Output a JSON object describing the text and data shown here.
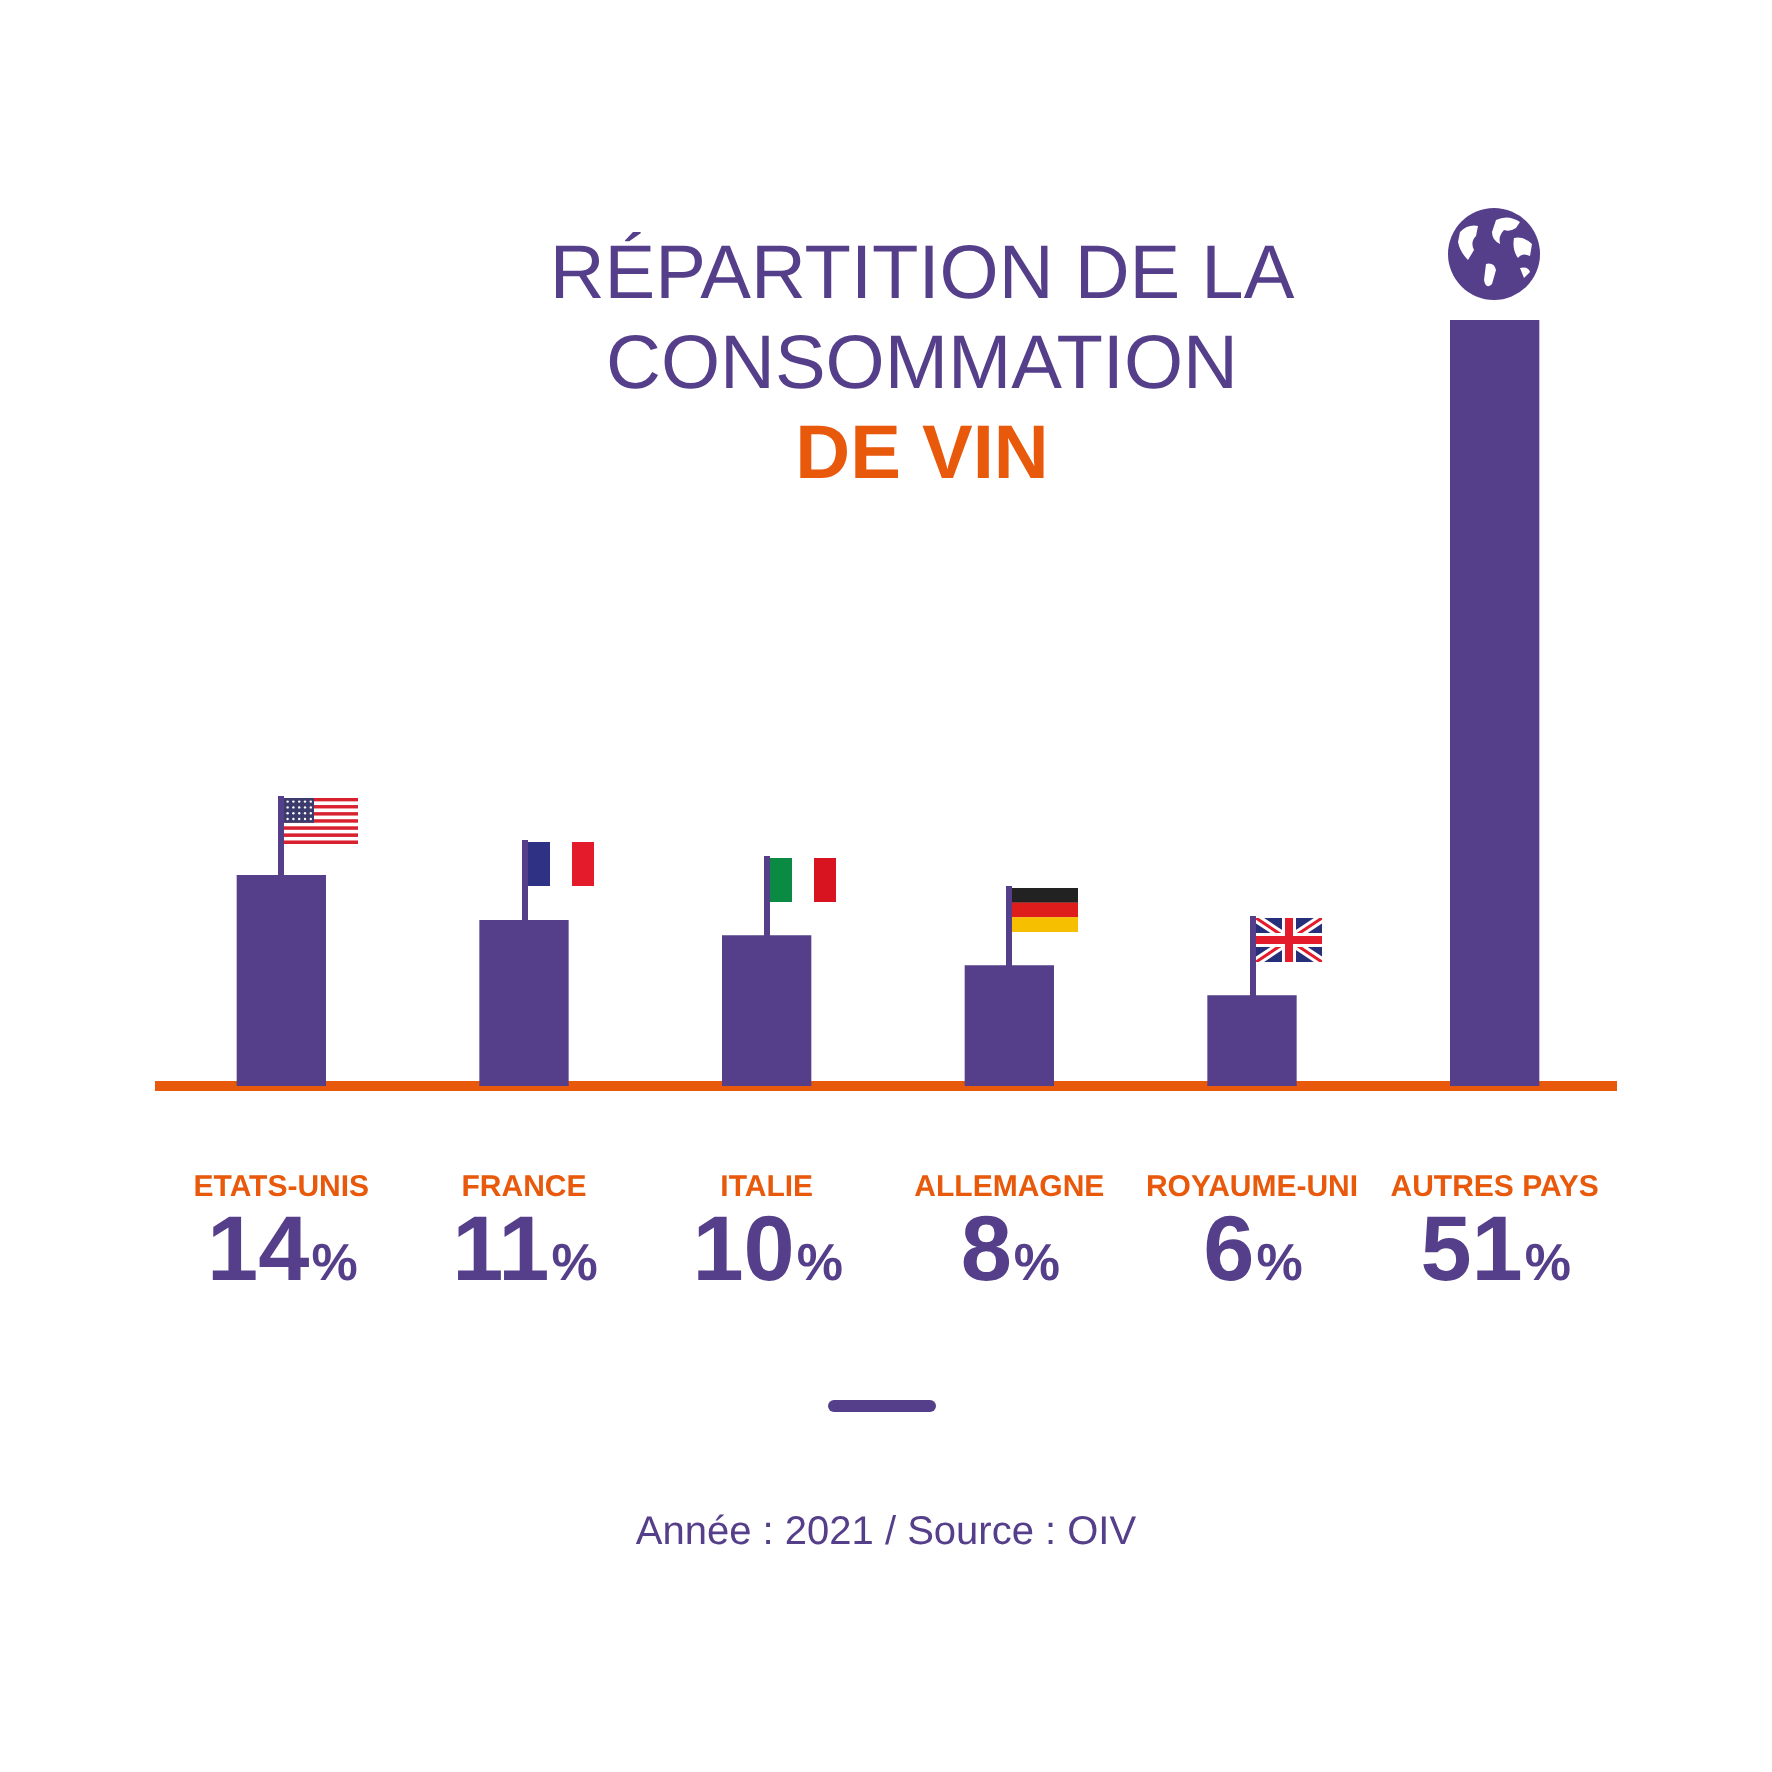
{
  "chart_data": {
    "type": "bar",
    "title": "RÉPARTITION DE LA CONSOMMATION",
    "subtitle": "DE VIN",
    "categories": [
      "ETATS-UNIS",
      "FRANCE",
      "ITALIE",
      "ALLEMAGNE",
      "ROYAUME-UNI",
      "AUTRES PAYS"
    ],
    "values": [
      14,
      11,
      10,
      8,
      6,
      51
    ],
    "value_labels": [
      "14%",
      "11%",
      "10%",
      "8%",
      "6%",
      "51%"
    ],
    "color": "#553f8a",
    "tick_labels": "x",
    "annotations": [
      "Année : 2021 / Source : OIV"
    ]
  }
}
